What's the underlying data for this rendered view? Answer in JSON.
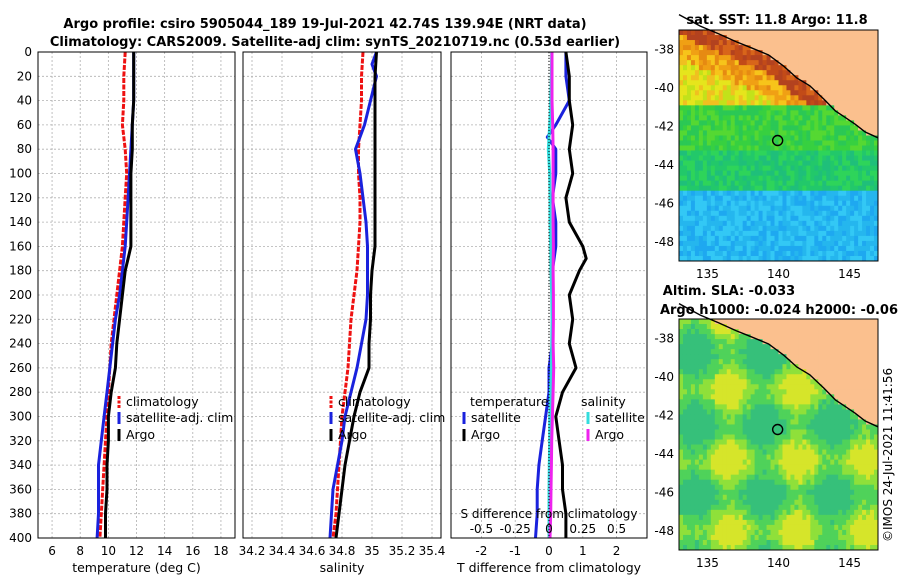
{
  "header": {
    "line1": "Argo profile: csiro 5905044_189 19-Jul-2021 42.74S 139.94E (NRT data)",
    "line2": "Climatology: CARS2009. Satellite-adj clim: synTS_20210719.nc (0.53d earlier)"
  },
  "watermark": "©IMOS 24-Jul-2021 11:41:56",
  "colors": {
    "climatology": "#ee1111",
    "satellite_clim": "#1a22dd",
    "argo": "#000000",
    "salinity_sat": "#33dddd",
    "salinity_argo": "#ee22ee",
    "grid": "#b0b0b0",
    "land": "#fbc08e"
  },
  "chart_data": [
    {
      "type": "line",
      "id": "temperature",
      "xlabel": "temperature (deg C)",
      "ylabel": "",
      "xlim": [
        5,
        19
      ],
      "ylim": [
        400,
        0
      ],
      "xticks": [
        "6",
        "8",
        "10",
        "12",
        "14",
        "16",
        "18"
      ],
      "xtick_values": [
        6,
        8,
        10,
        12,
        14,
        16,
        18
      ],
      "yticks": [
        "0",
        "20",
        "40",
        "60",
        "80",
        "100",
        "120",
        "140",
        "160",
        "180",
        "200",
        "220",
        "240",
        "260",
        "280",
        "300",
        "320",
        "340",
        "360",
        "380",
        "400"
      ],
      "ytick_values": [
        0,
        20,
        40,
        60,
        80,
        100,
        120,
        140,
        160,
        180,
        200,
        220,
        240,
        260,
        280,
        300,
        320,
        340,
        360,
        380,
        400
      ],
      "grid": true,
      "legend": [
        "climatology",
        "satellite-adj. clim",
        "Argo"
      ],
      "series": [
        {
          "name": "climatology",
          "color": "#ee1111",
          "dashed": true,
          "depth": [
            0,
            20,
            40,
            60,
            80,
            100,
            120,
            140,
            160,
            180,
            200,
            220,
            240,
            260,
            280,
            300,
            320,
            340,
            360,
            380,
            400
          ],
          "values": [
            11.2,
            11.1,
            11.1,
            11.0,
            11.2,
            11.3,
            11.2,
            11.1,
            11.0,
            10.8,
            10.6,
            10.4,
            10.2,
            10.1,
            10.0,
            9.9,
            9.8,
            9.7,
            9.6,
            9.5,
            9.4
          ]
        },
        {
          "name": "satellite-adj. clim",
          "color": "#1a22dd",
          "dashed": false,
          "depth": [
            0,
            20,
            40,
            60,
            80,
            100,
            120,
            140,
            160,
            180,
            200,
            220,
            240,
            260,
            280,
            300,
            320,
            340,
            360,
            380,
            400
          ],
          "values": [
            11.8,
            11.8,
            11.8,
            11.7,
            11.6,
            11.5,
            11.4,
            11.3,
            11.2,
            11.0,
            10.8,
            10.5,
            10.3,
            10.1,
            9.9,
            9.7,
            9.5,
            9.3,
            9.3,
            9.3,
            9.2
          ]
        },
        {
          "name": "Argo",
          "color": "#000000",
          "dashed": false,
          "depth": [
            0,
            20,
            40,
            60,
            80,
            100,
            120,
            140,
            160,
            170,
            180,
            200,
            220,
            240,
            260,
            280,
            300,
            320,
            340,
            360,
            380,
            400
          ],
          "values": [
            11.8,
            11.8,
            11.8,
            11.7,
            11.7,
            11.6,
            11.6,
            11.6,
            11.6,
            11.4,
            11.2,
            11.0,
            10.8,
            10.6,
            10.5,
            10.2,
            10.0,
            10.0,
            9.9,
            9.9,
            9.8,
            9.8
          ]
        }
      ]
    },
    {
      "type": "line",
      "id": "salinity",
      "xlabel": "salinity",
      "xlim": [
        34.14,
        35.46
      ],
      "ylim": [
        400,
        0
      ],
      "xticks": [
        "34.2",
        "34.4",
        "34.6",
        "34.8",
        "35",
        "35.2",
        "35.4"
      ],
      "xtick_values": [
        34.2,
        34.4,
        34.6,
        34.8,
        35.0,
        35.2,
        35.4
      ],
      "grid": true,
      "legend": [
        "climatology",
        "satellite-adj. clim",
        "Argo"
      ],
      "series": [
        {
          "name": "climatology",
          "color": "#ee1111",
          "dashed": true,
          "depth": [
            0,
            20,
            40,
            60,
            80,
            100,
            120,
            140,
            160,
            180,
            200,
            220,
            240,
            260,
            280,
            300,
            320,
            340,
            360,
            380,
            400
          ],
          "values": [
            34.94,
            34.93,
            34.93,
            34.92,
            34.91,
            34.91,
            34.92,
            34.92,
            34.91,
            34.9,
            34.88,
            34.86,
            34.85,
            34.84,
            34.82,
            34.8,
            34.79,
            34.78,
            34.77,
            34.76,
            34.74
          ]
        },
        {
          "name": "satellite-adj. clim",
          "color": "#1a22dd",
          "dashed": false,
          "depth": [
            0,
            10,
            20,
            40,
            60,
            80,
            100,
            120,
            140,
            160,
            180,
            200,
            220,
            240,
            260,
            280,
            300,
            320,
            340,
            360,
            380,
            400
          ],
          "values": [
            35.03,
            35.0,
            35.03,
            34.99,
            34.95,
            34.89,
            34.92,
            34.94,
            34.96,
            34.97,
            34.97,
            34.97,
            34.96,
            34.93,
            34.9,
            34.86,
            34.82,
            34.8,
            34.77,
            34.74,
            34.73,
            34.72
          ]
        },
        {
          "name": "Argo",
          "color": "#000000",
          "dashed": false,
          "depth": [
            0,
            20,
            40,
            60,
            80,
            100,
            120,
            140,
            160,
            170,
            180,
            200,
            220,
            240,
            260,
            280,
            300,
            320,
            340,
            360,
            380,
            400
          ],
          "values": [
            35.03,
            35.02,
            35.02,
            35.02,
            35.02,
            35.02,
            35.02,
            35.02,
            35.02,
            35.01,
            35.0,
            34.99,
            34.99,
            34.98,
            34.98,
            34.92,
            34.88,
            34.85,
            34.82,
            34.8,
            34.78,
            34.76
          ]
        }
      ]
    },
    {
      "type": "line",
      "id": "difference",
      "xlabel": "T difference from climatology",
      "xlabel_top": "S difference from climatology",
      "xlim": [
        -2.9,
        2.9
      ],
      "ylim": [
        400,
        0
      ],
      "xticks": [
        "-2",
        "-1",
        "0",
        "1",
        "2"
      ],
      "xtick_values": [
        -2,
        -1,
        0,
        1,
        2
      ],
      "sticks": [
        "-0.5",
        "-0.25",
        "0",
        "0.25",
        "0.5"
      ],
      "stick_values": [
        -0.5,
        -0.25,
        0,
        0.25,
        0.5
      ],
      "grid": true,
      "legend_temperature_title": "temperature",
      "legend_salinity_title": "salinity",
      "legend_temperature": [
        "satellite",
        "Argo"
      ],
      "legend_salinity": [
        "satellite",
        "Argo"
      ],
      "series": [
        {
          "name": "temperature satellite",
          "color": "#1a22dd",
          "depth": [
            0,
            20,
            40,
            60,
            70,
            80,
            100,
            120,
            140,
            160,
            180,
            200,
            220,
            240,
            260,
            280,
            300,
            320,
            340,
            360,
            380,
            400
          ],
          "values": [
            0.5,
            0.5,
            0.6,
            0.2,
            -0.05,
            0.2,
            0.2,
            0.1,
            0.2,
            0.2,
            0.1,
            0.1,
            0.1,
            0.1,
            0.0,
            0.0,
            -0.1,
            -0.2,
            -0.3,
            -0.35,
            -0.35,
            -0.4
          ]
        },
        {
          "name": "temperature Argo",
          "color": "#000000",
          "depth": [
            0,
            20,
            40,
            60,
            80,
            100,
            120,
            140,
            160,
            170,
            180,
            200,
            220,
            240,
            260,
            280,
            300,
            320,
            340,
            360,
            380,
            400
          ],
          "values": [
            0.5,
            0.6,
            0.6,
            0.7,
            0.6,
            0.7,
            0.5,
            0.6,
            1.0,
            1.1,
            0.9,
            0.6,
            0.7,
            0.6,
            0.8,
            0.4,
            0.2,
            0.3,
            0.4,
            0.4,
            0.5,
            0.5
          ]
        },
        {
          "name": "salinity satellite",
          "color": "#33dddd",
          "depth": [
            0,
            20,
            40,
            60,
            80,
            100,
            120,
            140,
            160,
            180,
            200,
            220,
            240,
            260,
            280,
            300,
            320,
            340,
            360,
            380,
            400
          ],
          "values": [
            0.08,
            0.07,
            0.05,
            0.02,
            -0.02,
            0.02,
            0.03,
            0.03,
            0.05,
            0.06,
            0.08,
            0.09,
            0.08,
            0.07,
            0.04,
            0.02,
            0.02,
            0.01,
            0.0,
            0.0,
            0.0
          ]
        },
        {
          "name": "salinity Argo",
          "color": "#ee22ee",
          "depth": [
            0,
            20,
            40,
            60,
            80,
            100,
            120,
            140,
            160,
            180,
            200,
            220,
            240,
            260,
            280,
            300,
            320,
            340,
            360,
            380,
            400
          ],
          "values": [
            0.09,
            0.09,
            0.09,
            0.11,
            0.12,
            0.12,
            0.12,
            0.12,
            0.13,
            0.12,
            0.13,
            0.13,
            0.12,
            0.14,
            0.12,
            0.1,
            0.08,
            0.07,
            0.06,
            0.05,
            0.03
          ]
        }
      ]
    },
    {
      "type": "heatmap",
      "id": "sst_map",
      "title": "sat. SST: 11.8 Argo: 11.8",
      "xlim": [
        133,
        147
      ],
      "ylim": [
        -49,
        -37
      ],
      "xticks": [
        "135",
        "140",
        "145"
      ],
      "xtick_values": [
        135,
        140,
        145
      ],
      "yticks": [
        "-38",
        "-40",
        "-42",
        "-44",
        "-46",
        "-48"
      ],
      "ytick_values": [
        -38,
        -40,
        -42,
        -44,
        -46,
        -48
      ],
      "float_position": {
        "lon": 139.94,
        "lat": -42.74
      }
    },
    {
      "type": "heatmap",
      "id": "sla_map",
      "title_line1": "Altim. SLA: -0.033",
      "title_line2": "Argo h1000: -0.024 h2000: -0.06",
      "xlim": [
        133,
        147
      ],
      "ylim": [
        -49,
        -37
      ],
      "xticks": [
        "135",
        "140",
        "145"
      ],
      "xtick_values": [
        135,
        140,
        145
      ],
      "yticks": [
        "-38",
        "-40",
        "-42",
        "-44",
        "-46",
        "-48"
      ],
      "ytick_values": [
        -38,
        -40,
        -42,
        -44,
        -46,
        -48
      ],
      "float_position": {
        "lon": 139.94,
        "lat": -42.74
      }
    }
  ]
}
